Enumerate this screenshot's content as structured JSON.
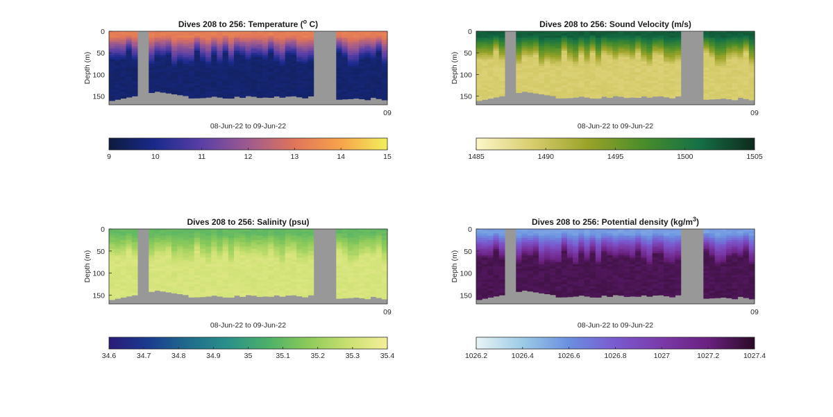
{
  "chart_data": [
    {
      "type": "heatmap",
      "title_prefix": "Dives 208 to 256: ",
      "title_main": "Temperature (",
      "title_sup": "o",
      "title_tail": " C)",
      "ylabel": "Depth (m)",
      "xlabel": "08-Jun-22 to 09-Jun-22",
      "x_end_label": "09",
      "ylim": [
        0,
        170
      ],
      "yticks": [
        0,
        50,
        100,
        150
      ],
      "dives": [
        208,
        256
      ],
      "gaps": [
        [
          5,
          6
        ],
        [
          36,
          39
        ]
      ],
      "bottom_depth_start": 162,
      "bottom_depth_mid": 150,
      "surface_value": 13.2,
      "deep_value": 9.6,
      "colorbar": {
        "limits": [
          9,
          15
        ],
        "ticks": [
          "9",
          "10",
          "11",
          "12",
          "13",
          "14",
          "15"
        ],
        "colors": [
          "#0d1b3e",
          "#1a2a8c",
          "#5a3fa6",
          "#9e5a8f",
          "#e0755a",
          "#f7a34a",
          "#f2f05c"
        ]
      }
    },
    {
      "type": "heatmap",
      "title_prefix": "Dives 208 to 256: ",
      "title_main": "Sound Velocity (m/s)",
      "title_sup": "",
      "title_tail": "",
      "ylabel": "Depth (m)",
      "xlabel": "08-Jun-22 to 09-Jun-22",
      "x_end_label": "09",
      "ylim": [
        0,
        170
      ],
      "yticks": [
        0,
        50,
        100,
        150
      ],
      "dives": [
        208,
        256
      ],
      "gaps": [
        [
          5,
          6
        ],
        [
          36,
          39
        ]
      ],
      "surface_value": 1502,
      "deep_value": 1489,
      "colorbar": {
        "limits": [
          1485,
          1505
        ],
        "ticks": [
          "1485",
          "1490",
          "1495",
          "1500",
          "1505"
        ],
        "colors": [
          "#fcf7c8",
          "#d8cd6e",
          "#9aa328",
          "#4a8d2a",
          "#147046",
          "#0e2a1c"
        ]
      }
    },
    {
      "type": "heatmap",
      "title_prefix": "Dives 208 to 256: ",
      "title_main": "Salinity (psu)",
      "title_sup": "",
      "title_tail": "",
      "ylabel": "Depth (m)",
      "xlabel": "08-Jun-22 to 09-Jun-22",
      "x_end_label": "09",
      "ylim": [
        0,
        170
      ],
      "yticks": [
        0,
        50,
        100,
        150
      ],
      "dives": [
        208,
        256
      ],
      "gaps": [
        [
          5,
          6
        ],
        [
          36,
          39
        ]
      ],
      "surface_value": 35.1,
      "deep_value": 35.32,
      "colorbar": {
        "limits": [
          34.6,
          35.4
        ],
        "ticks": [
          "34.6",
          "34.7",
          "34.8",
          "34.9",
          "35",
          "35.1",
          "35.2",
          "35.3",
          "35.4"
        ],
        "colors": [
          "#2a1a78",
          "#1a3c8f",
          "#1f6c8c",
          "#2a918a",
          "#4cb068",
          "#8cca5a",
          "#c9e070",
          "#f5ef9a"
        ]
      }
    },
    {
      "type": "heatmap",
      "title_prefix": "Dives 208 to 256: ",
      "title_main": "Potential density (kg/m",
      "title_sup": "3",
      "title_tail": ")",
      "ylabel": "Depth (m)",
      "xlabel": "08-Jun-22 to 09-Jun-22",
      "x_end_label": "09",
      "ylim": [
        0,
        170
      ],
      "yticks": [
        0,
        50,
        100,
        150
      ],
      "dives": [
        208,
        256
      ],
      "gaps": [
        [
          5,
          6
        ],
        [
          36,
          39
        ]
      ],
      "surface_value": 1026.55,
      "deep_value": 1027.3,
      "colorbar": {
        "limits": [
          1026.2,
          1027.4
        ],
        "ticks": [
          "1026.2",
          "1026.4",
          "1026.6",
          "1026.8",
          "1027",
          "1027.2",
          "1027.4"
        ],
        "colors": [
          "#e9f4f6",
          "#9ccbe6",
          "#6a8fe0",
          "#7a5ad0",
          "#7a3aa8",
          "#6a2080",
          "#2a0a25"
        ]
      }
    }
  ],
  "colors": {
    "nodata": "#989898",
    "axes": "#262626"
  }
}
